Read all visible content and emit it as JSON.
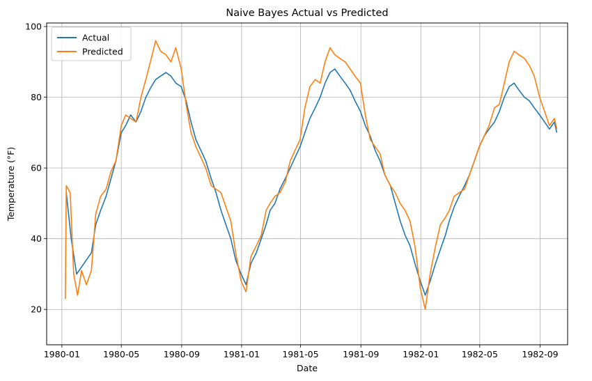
{
  "chart_data": {
    "type": "line",
    "title": "Naive Bayes Actual vs Predicted",
    "xlabel": "Date",
    "ylabel": "Temperature (°F)",
    "xlim": [
      "1979-12-01",
      "1982-10-27"
    ],
    "ylim": [
      10,
      101
    ],
    "xticks": [
      {
        "date": "1980-01-01",
        "label": "1980-01"
      },
      {
        "date": "1980-05-01",
        "label": "1980-05"
      },
      {
        "date": "1980-09-01",
        "label": "1980-09"
      },
      {
        "date": "1981-01-01",
        "label": "1981-01"
      },
      {
        "date": "1981-05-01",
        "label": "1981-05"
      },
      {
        "date": "1981-09-01",
        "label": "1981-09"
      },
      {
        "date": "1982-01-01",
        "label": "1982-01"
      },
      {
        "date": "1982-05-01",
        "label": "1982-05"
      },
      {
        "date": "1982-09-01",
        "label": "1982-09"
      }
    ],
    "yticks": [
      20,
      40,
      60,
      80,
      100
    ],
    "grid": true,
    "legend": "top-left",
    "series": [
      {
        "name": "Actual",
        "color": "#1f77b4",
        "points": [
          [
            "1980-01-10",
            53
          ],
          [
            "1980-01-20",
            40
          ],
          [
            "1980-01-31",
            30
          ],
          [
            "1980-02-10",
            32
          ],
          [
            "1980-02-20",
            34
          ],
          [
            "1980-03-01",
            36
          ],
          [
            "1980-03-10",
            44
          ],
          [
            "1980-03-20",
            48
          ],
          [
            "1980-03-31",
            52
          ],
          [
            "1980-04-10",
            57
          ],
          [
            "1980-04-20",
            62
          ],
          [
            "1980-05-01",
            70
          ],
          [
            "1980-05-10",
            72
          ],
          [
            "1980-05-20",
            75
          ],
          [
            "1980-05-31",
            73
          ],
          [
            "1980-06-10",
            76
          ],
          [
            "1980-06-20",
            80
          ],
          [
            "1980-07-01",
            83
          ],
          [
            "1980-07-10",
            85
          ],
          [
            "1980-07-20",
            86
          ],
          [
            "1980-07-31",
            87
          ],
          [
            "1980-08-10",
            86
          ],
          [
            "1980-08-20",
            84
          ],
          [
            "1980-08-31",
            83
          ],
          [
            "1980-09-10",
            79
          ],
          [
            "1980-09-20",
            73
          ],
          [
            "1980-09-30",
            68
          ],
          [
            "1980-10-10",
            65
          ],
          [
            "1980-10-20",
            62
          ],
          [
            "1980-10-31",
            57
          ],
          [
            "1980-11-10",
            53
          ],
          [
            "1980-11-20",
            48
          ],
          [
            "1980-11-30",
            44
          ],
          [
            "1980-12-10",
            40
          ],
          [
            "1980-12-20",
            34
          ],
          [
            "1980-12-31",
            30
          ],
          [
            "1981-01-10",
            27
          ],
          [
            "1981-01-20",
            33
          ],
          [
            "1981-01-31",
            36
          ],
          [
            "1981-02-10",
            40
          ],
          [
            "1981-02-20",
            44
          ],
          [
            "1981-02-28",
            48
          ],
          [
            "1981-03-10",
            50
          ],
          [
            "1981-03-20",
            54
          ],
          [
            "1981-03-31",
            57
          ],
          [
            "1981-04-10",
            60
          ],
          [
            "1981-04-20",
            63
          ],
          [
            "1981-04-30",
            66
          ],
          [
            "1981-05-10",
            70
          ],
          [
            "1981-05-20",
            74
          ],
          [
            "1981-05-31",
            77
          ],
          [
            "1981-06-10",
            80
          ],
          [
            "1981-06-20",
            84
          ],
          [
            "1981-06-30",
            87
          ],
          [
            "1981-07-10",
            88
          ],
          [
            "1981-07-20",
            86
          ],
          [
            "1981-07-31",
            84
          ],
          [
            "1981-08-10",
            82
          ],
          [
            "1981-08-20",
            79
          ],
          [
            "1981-08-31",
            76
          ],
          [
            "1981-09-10",
            72
          ],
          [
            "1981-09-20",
            69
          ],
          [
            "1981-09-30",
            65
          ],
          [
            "1981-10-10",
            62
          ],
          [
            "1981-10-20",
            58
          ],
          [
            "1981-10-31",
            55
          ],
          [
            "1981-11-10",
            50
          ],
          [
            "1981-11-20",
            45
          ],
          [
            "1981-11-30",
            41
          ],
          [
            "1981-12-10",
            38
          ],
          [
            "1981-12-20",
            33
          ],
          [
            "1981-12-31",
            28
          ],
          [
            "1982-01-10",
            24
          ],
          [
            "1982-01-20",
            28
          ],
          [
            "1982-01-31",
            33
          ],
          [
            "1982-02-10",
            37
          ],
          [
            "1982-02-20",
            41
          ],
          [
            "1982-02-28",
            45
          ],
          [
            "1982-03-10",
            49
          ],
          [
            "1982-03-20",
            52
          ],
          [
            "1982-03-31",
            55
          ],
          [
            "1982-04-10",
            58
          ],
          [
            "1982-04-20",
            62
          ],
          [
            "1982-04-30",
            66
          ],
          [
            "1982-05-10",
            69
          ],
          [
            "1982-05-20",
            71
          ],
          [
            "1982-05-31",
            73
          ],
          [
            "1982-06-10",
            76
          ],
          [
            "1982-06-20",
            80
          ],
          [
            "1982-06-30",
            83
          ],
          [
            "1982-07-10",
            84
          ],
          [
            "1982-07-20",
            82
          ],
          [
            "1982-07-31",
            80
          ],
          [
            "1982-08-10",
            79
          ],
          [
            "1982-08-20",
            77
          ],
          [
            "1982-08-31",
            75
          ],
          [
            "1982-09-10",
            73
          ],
          [
            "1982-09-20",
            71
          ],
          [
            "1982-09-30",
            73
          ],
          [
            "1982-10-05",
            70
          ]
        ]
      },
      {
        "name": "Predicted",
        "color": "#ff7f0e",
        "points": [
          [
            "1980-01-08",
            23
          ],
          [
            "1980-01-10",
            55
          ],
          [
            "1980-01-18",
            53
          ],
          [
            "1980-01-25",
            30
          ],
          [
            "1980-02-02",
            24
          ],
          [
            "1980-02-10",
            31
          ],
          [
            "1980-02-20",
            27
          ],
          [
            "1980-03-01",
            31
          ],
          [
            "1980-03-10",
            47
          ],
          [
            "1980-03-20",
            52
          ],
          [
            "1980-03-31",
            54
          ],
          [
            "1980-04-10",
            59
          ],
          [
            "1980-04-20",
            62
          ],
          [
            "1980-05-01",
            72
          ],
          [
            "1980-05-10",
            75
          ],
          [
            "1980-05-20",
            74
          ],
          [
            "1980-05-31",
            73
          ],
          [
            "1980-06-10",
            80
          ],
          [
            "1980-06-20",
            85
          ],
          [
            "1980-07-01",
            91
          ],
          [
            "1980-07-10",
            96
          ],
          [
            "1980-07-20",
            93
          ],
          [
            "1980-07-31",
            92
          ],
          [
            "1980-08-10",
            90
          ],
          [
            "1980-08-20",
            94
          ],
          [
            "1980-08-31",
            88
          ],
          [
            "1980-09-10",
            78
          ],
          [
            "1980-09-20",
            70
          ],
          [
            "1980-09-30",
            66
          ],
          [
            "1980-10-10",
            63
          ],
          [
            "1980-10-20",
            60
          ],
          [
            "1980-10-31",
            55
          ],
          [
            "1980-11-10",
            54
          ],
          [
            "1980-11-20",
            53
          ],
          [
            "1980-11-30",
            49
          ],
          [
            "1980-12-10",
            45
          ],
          [
            "1980-12-20",
            36
          ],
          [
            "1980-12-31",
            28
          ],
          [
            "1981-01-10",
            25
          ],
          [
            "1981-01-20",
            35
          ],
          [
            "1981-01-31",
            38
          ],
          [
            "1981-02-10",
            41
          ],
          [
            "1981-02-20",
            48
          ],
          [
            "1981-02-28",
            50
          ],
          [
            "1981-03-10",
            52
          ],
          [
            "1981-03-20",
            53
          ],
          [
            "1981-03-31",
            56
          ],
          [
            "1981-04-10",
            62
          ],
          [
            "1981-04-20",
            65
          ],
          [
            "1981-04-30",
            68
          ],
          [
            "1981-05-10",
            77
          ],
          [
            "1981-05-20",
            83
          ],
          [
            "1981-05-31",
            85
          ],
          [
            "1981-06-10",
            84
          ],
          [
            "1981-06-20",
            90
          ],
          [
            "1981-06-30",
            94
          ],
          [
            "1981-07-10",
            92
          ],
          [
            "1981-07-20",
            91
          ],
          [
            "1981-07-31",
            90
          ],
          [
            "1981-08-10",
            88
          ],
          [
            "1981-08-20",
            86
          ],
          [
            "1981-08-31",
            84
          ],
          [
            "1981-09-10",
            75
          ],
          [
            "1981-09-20",
            68
          ],
          [
            "1981-09-30",
            66
          ],
          [
            "1981-10-10",
            64
          ],
          [
            "1981-10-20",
            58
          ],
          [
            "1981-10-31",
            55
          ],
          [
            "1981-11-10",
            53
          ],
          [
            "1981-11-20",
            50
          ],
          [
            "1981-11-30",
            48
          ],
          [
            "1981-12-10",
            45
          ],
          [
            "1981-12-20",
            38
          ],
          [
            "1981-12-31",
            26
          ],
          [
            "1982-01-10",
            20
          ],
          [
            "1982-01-20",
            30
          ],
          [
            "1982-01-31",
            38
          ],
          [
            "1982-02-10",
            44
          ],
          [
            "1982-02-20",
            46
          ],
          [
            "1982-02-28",
            48
          ],
          [
            "1982-03-10",
            52
          ],
          [
            "1982-03-20",
            53
          ],
          [
            "1982-03-31",
            54
          ],
          [
            "1982-04-10",
            58
          ],
          [
            "1982-04-20",
            62
          ],
          [
            "1982-04-30",
            66
          ],
          [
            "1982-05-10",
            69
          ],
          [
            "1982-05-20",
            72
          ],
          [
            "1982-05-31",
            77
          ],
          [
            "1982-06-10",
            78
          ],
          [
            "1982-06-20",
            84
          ],
          [
            "1982-06-30",
            90
          ],
          [
            "1982-07-10",
            93
          ],
          [
            "1982-07-20",
            92
          ],
          [
            "1982-07-31",
            91
          ],
          [
            "1982-08-10",
            89
          ],
          [
            "1982-08-20",
            86
          ],
          [
            "1982-08-31",
            80
          ],
          [
            "1982-09-10",
            76
          ],
          [
            "1982-09-20",
            72
          ],
          [
            "1982-09-30",
            74
          ],
          [
            "1982-10-05",
            71
          ]
        ]
      }
    ]
  }
}
